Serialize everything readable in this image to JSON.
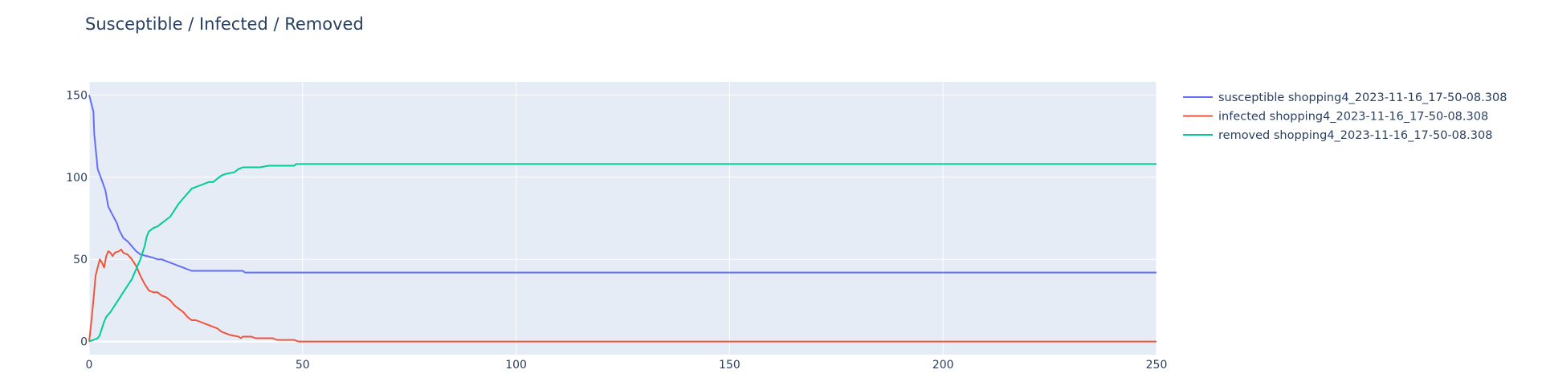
{
  "chart_data": {
    "type": "line",
    "title": "Susceptible / Infected / Removed",
    "xlabel": "",
    "ylabel": "",
    "xlim": [
      0,
      250
    ],
    "ylim": [
      -8,
      158
    ],
    "x_ticks": [
      0,
      50,
      100,
      150,
      200,
      250
    ],
    "y_ticks": [
      0,
      50,
      100,
      150
    ],
    "grid": true,
    "legend_position": "right",
    "plot_background": "#e5ecf6",
    "series": [
      {
        "name": "susceptible shopping4_2023-11-16_17-50-08.308",
        "color": "#636efa",
        "points": [
          [
            0,
            150
          ],
          [
            1,
            140
          ],
          [
            1.2,
            126
          ],
          [
            2,
            105
          ],
          [
            3,
            98
          ],
          [
            3.8,
            92
          ],
          [
            4.5,
            82
          ],
          [
            5.5,
            77
          ],
          [
            6.5,
            72
          ],
          [
            7,
            68
          ],
          [
            8,
            63
          ],
          [
            9,
            61
          ],
          [
            10,
            58
          ],
          [
            11,
            55
          ],
          [
            12,
            53
          ],
          [
            13.5,
            52
          ],
          [
            15,
            51
          ],
          [
            16,
            50
          ],
          [
            17,
            50
          ],
          [
            18,
            49
          ],
          [
            19,
            48
          ],
          [
            20,
            47
          ],
          [
            21,
            46
          ],
          [
            22,
            45
          ],
          [
            23,
            44
          ],
          [
            24,
            43
          ],
          [
            25,
            43
          ],
          [
            30,
            43
          ],
          [
            36,
            43
          ],
          [
            36.5,
            42
          ],
          [
            40,
            42
          ],
          [
            50,
            42
          ],
          [
            250,
            42
          ]
        ]
      },
      {
        "name": "infected shopping4_2023-11-16_17-50-08.308",
        "color": "#ef553b",
        "points": [
          [
            0,
            0
          ],
          [
            0.5,
            12
          ],
          [
            1,
            25
          ],
          [
            1.5,
            40
          ],
          [
            2,
            45
          ],
          [
            2.5,
            50
          ],
          [
            3,
            48
          ],
          [
            3.5,
            45
          ],
          [
            4,
            52
          ],
          [
            4.5,
            55
          ],
          [
            5,
            54
          ],
          [
            5.5,
            52
          ],
          [
            6,
            54
          ],
          [
            7,
            55
          ],
          [
            7.5,
            56
          ],
          [
            8,
            54
          ],
          [
            9,
            53
          ],
          [
            10,
            50
          ],
          [
            11,
            46
          ],
          [
            12,
            40
          ],
          [
            13,
            35
          ],
          [
            14,
            31
          ],
          [
            15,
            30
          ],
          [
            16,
            30
          ],
          [
            17,
            28
          ],
          [
            18,
            27
          ],
          [
            19,
            25
          ],
          [
            20,
            22
          ],
          [
            21,
            20
          ],
          [
            22,
            18
          ],
          [
            23,
            15
          ],
          [
            24,
            13
          ],
          [
            25,
            13
          ],
          [
            26,
            12
          ],
          [
            27,
            11
          ],
          [
            28,
            10
          ],
          [
            29,
            9
          ],
          [
            30,
            8
          ],
          [
            31,
            6
          ],
          [
            32,
            5
          ],
          [
            33,
            4
          ],
          [
            35,
            3
          ],
          [
            35.5,
            2
          ],
          [
            36,
            3
          ],
          [
            38,
            3
          ],
          [
            39,
            2
          ],
          [
            43,
            2
          ],
          [
            44,
            1
          ],
          [
            48,
            1
          ],
          [
            49,
            0
          ],
          [
            250,
            0
          ]
        ]
      },
      {
        "name": "removed shopping4_2023-11-16_17-50-08.308",
        "color": "#00cc96",
        "points": [
          [
            0,
            0
          ],
          [
            1,
            1
          ],
          [
            2,
            2
          ],
          [
            2.5,
            4
          ],
          [
            3,
            8
          ],
          [
            3.5,
            12
          ],
          [
            4,
            15
          ],
          [
            5,
            18
          ],
          [
            6,
            22
          ],
          [
            7,
            26
          ],
          [
            8,
            30
          ],
          [
            9,
            34
          ],
          [
            10,
            38
          ],
          [
            11,
            44
          ],
          [
            12,
            50
          ],
          [
            13,
            58
          ],
          [
            13.5,
            64
          ],
          [
            14,
            67
          ],
          [
            15,
            69
          ],
          [
            16,
            70
          ],
          [
            17,
            72
          ],
          [
            18,
            74
          ],
          [
            19,
            76
          ],
          [
            20,
            80
          ],
          [
            21,
            84
          ],
          [
            22,
            87
          ],
          [
            23,
            90
          ],
          [
            24,
            93
          ],
          [
            25,
            94
          ],
          [
            26,
            95
          ],
          [
            27,
            96
          ],
          [
            28,
            97
          ],
          [
            29,
            97
          ],
          [
            30,
            99
          ],
          [
            31,
            101
          ],
          [
            32,
            102
          ],
          [
            34,
            103
          ],
          [
            35,
            105
          ],
          [
            36,
            106
          ],
          [
            37,
            106
          ],
          [
            40,
            106
          ],
          [
            42,
            107
          ],
          [
            48,
            107
          ],
          [
            48.5,
            108
          ],
          [
            250,
            108
          ]
        ]
      }
    ]
  }
}
